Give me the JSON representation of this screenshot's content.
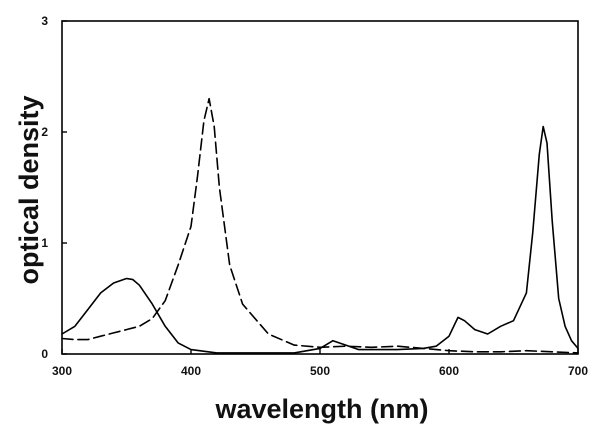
{
  "chart_data": {
    "type": "line",
    "title": "",
    "xlabel": "wavelength (nm)",
    "ylabel": "optical density",
    "xlim": [
      300,
      700
    ],
    "ylim": [
      0,
      3
    ],
    "x_ticks": [
      300,
      400,
      500,
      600,
      700
    ],
    "y_ticks": [
      0,
      1,
      2,
      3
    ],
    "grid": false,
    "legend": "none",
    "series": [
      {
        "style": "solid",
        "color": "#000000",
        "points": [
          [
            300,
            0.18
          ],
          [
            310,
            0.25
          ],
          [
            320,
            0.4
          ],
          [
            330,
            0.55
          ],
          [
            340,
            0.64
          ],
          [
            350,
            0.68
          ],
          [
            355,
            0.67
          ],
          [
            360,
            0.62
          ],
          [
            370,
            0.45
          ],
          [
            380,
            0.25
          ],
          [
            390,
            0.1
          ],
          [
            400,
            0.04
          ],
          [
            420,
            0.01
          ],
          [
            480,
            0.01
          ],
          [
            500,
            0.05
          ],
          [
            510,
            0.12
          ],
          [
            520,
            0.08
          ],
          [
            530,
            0.04
          ],
          [
            560,
            0.04
          ],
          [
            580,
            0.05
          ],
          [
            590,
            0.07
          ],
          [
            600,
            0.16
          ],
          [
            607,
            0.33
          ],
          [
            612,
            0.3
          ],
          [
            620,
            0.22
          ],
          [
            630,
            0.18
          ],
          [
            640,
            0.25
          ],
          [
            650,
            0.3
          ],
          [
            660,
            0.55
          ],
          [
            665,
            1.1
          ],
          [
            670,
            1.8
          ],
          [
            673,
            2.05
          ],
          [
            676,
            1.9
          ],
          [
            680,
            1.2
          ],
          [
            685,
            0.5
          ],
          [
            690,
            0.25
          ],
          [
            695,
            0.12
          ],
          [
            700,
            0.05
          ]
        ]
      },
      {
        "style": "dashed",
        "color": "#000000",
        "points": [
          [
            300,
            0.14
          ],
          [
            310,
            0.13
          ],
          [
            320,
            0.13
          ],
          [
            330,
            0.16
          ],
          [
            340,
            0.19
          ],
          [
            350,
            0.22
          ],
          [
            360,
            0.25
          ],
          [
            370,
            0.32
          ],
          [
            380,
            0.48
          ],
          [
            390,
            0.8
          ],
          [
            400,
            1.15
          ],
          [
            405,
            1.6
          ],
          [
            410,
            2.1
          ],
          [
            414,
            2.3
          ],
          [
            418,
            2.05
          ],
          [
            422,
            1.5
          ],
          [
            430,
            0.8
          ],
          [
            440,
            0.45
          ],
          [
            460,
            0.18
          ],
          [
            480,
            0.08
          ],
          [
            500,
            0.06
          ],
          [
            520,
            0.07
          ],
          [
            540,
            0.06
          ],
          [
            560,
            0.07
          ],
          [
            580,
            0.05
          ],
          [
            600,
            0.03
          ],
          [
            620,
            0.02
          ],
          [
            640,
            0.02
          ],
          [
            660,
            0.03
          ],
          [
            680,
            0.02
          ],
          [
            700,
            0.01
          ]
        ]
      }
    ]
  }
}
